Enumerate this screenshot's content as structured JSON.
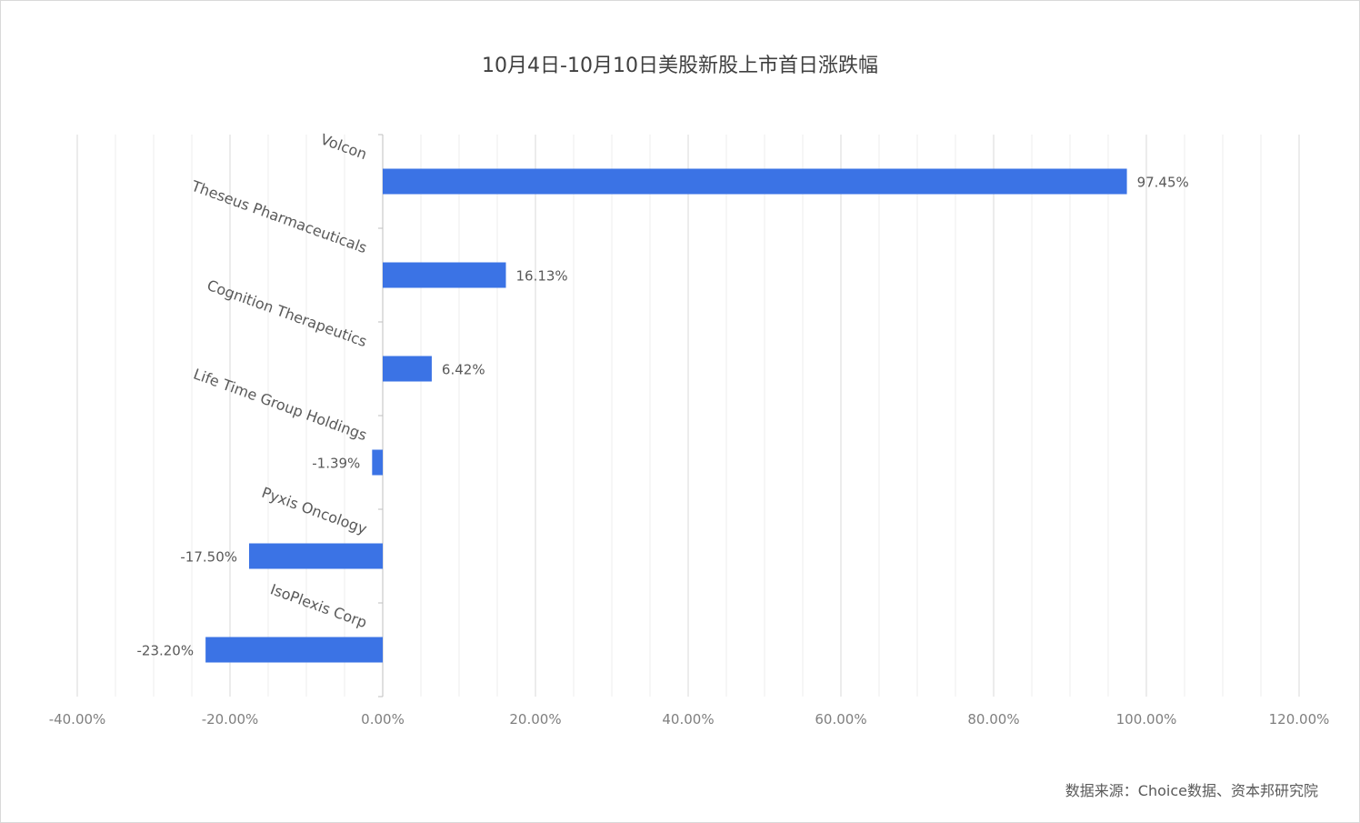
{
  "chart_data": {
    "type": "bar",
    "orientation": "horizontal",
    "title": "10月4日-10月10日美股新股上市首日涨跌幅",
    "categories": [
      "Volcon",
      "Theseus Pharmaceuticals",
      "Cognition Therapeutics",
      "Life Time Group Holdings",
      "Pyxis Oncology",
      "IsoPlexis Corp"
    ],
    "values": [
      97.45,
      16.13,
      6.42,
      -1.39,
      -17.5,
      -23.2
    ],
    "data_labels": [
      "97.45%",
      "16.13%",
      "6.42%",
      "-1.39%",
      "-17.50%",
      "-23.20%"
    ],
    "x_ticks": [
      -40,
      -20,
      0,
      20,
      40,
      60,
      80,
      100,
      120
    ],
    "x_tick_labels": [
      "-40.00%",
      "-20.00%",
      "0.00%",
      "20.00%",
      "40.00%",
      "60.00%",
      "80.00%",
      "100.00%",
      "120.00%"
    ],
    "xlim": [
      -40,
      120
    ],
    "grid": true,
    "legend": "none",
    "bar_color": "#3B73E5"
  },
  "source_note": "数据来源：Choice数据、资本邦研究院"
}
